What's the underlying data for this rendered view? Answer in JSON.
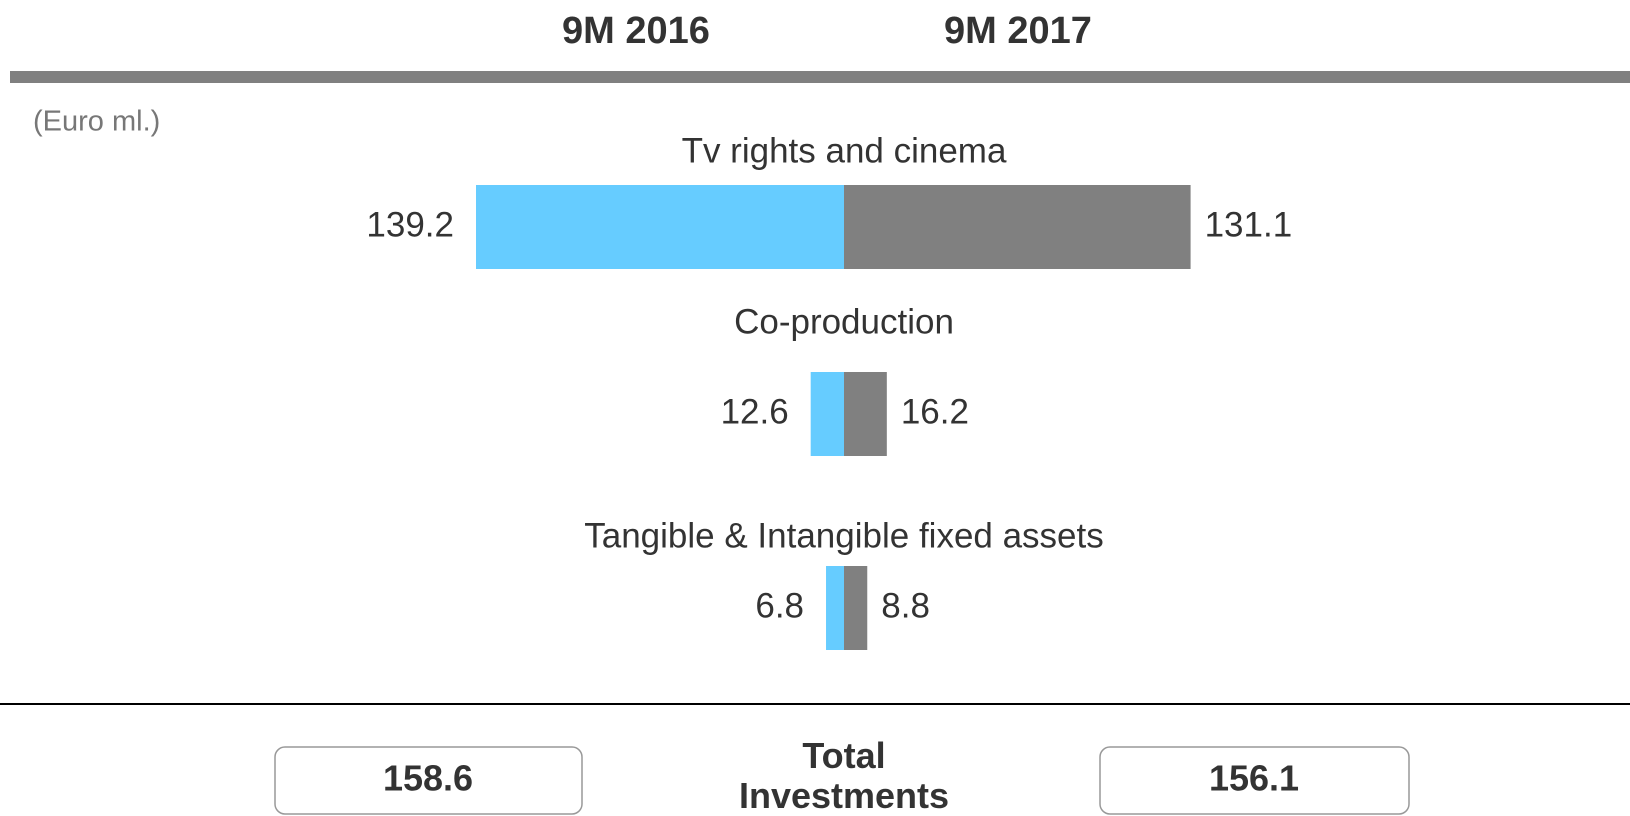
{
  "chart_data": {
    "type": "butterfly_bar",
    "unit_label": "(Euro ml.)",
    "categories": [
      "Tv rights and cinema",
      "Co-production",
      "Tangible & Intangible fixed assets"
    ],
    "series": [
      {
        "name": "9M 2016",
        "color": "#66ccff",
        "values": [
          139.2,
          12.6,
          6.8
        ]
      },
      {
        "name": "9M 2017",
        "color": "#808080",
        "values": [
          131.1,
          16.2,
          8.8
        ]
      }
    ],
    "totals": {
      "label": "Total Investments",
      "values": [
        158.6,
        156.1
      ]
    }
  }
}
